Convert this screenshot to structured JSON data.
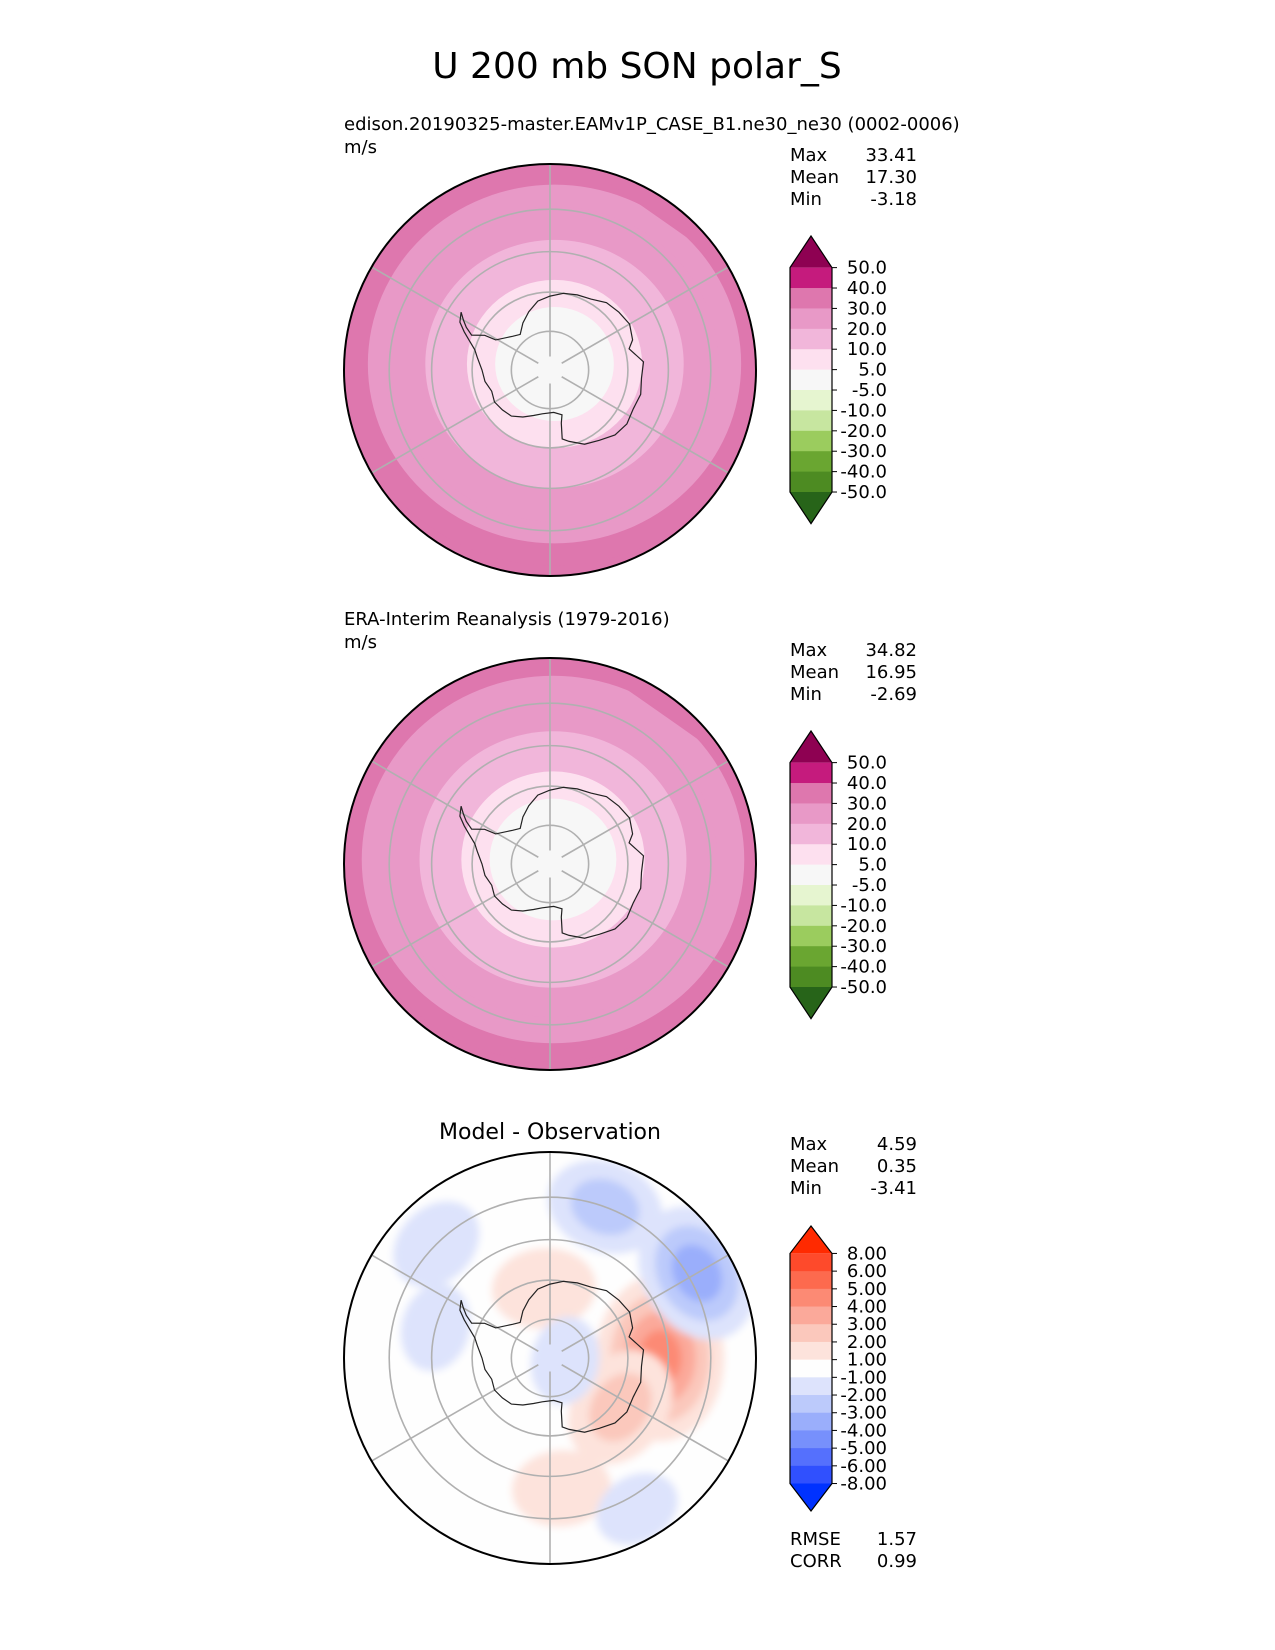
{
  "figure_title": "U 200 mb SON polar_S",
  "chart_data": [
    {
      "type": "heatmap",
      "projection": "south-polar-stereographic",
      "title": "edison.20190325-master.EAMv1P_CASE_B1.ne30_ne30 (0002-0006)",
      "units": "m/s",
      "stats": [
        {
          "label": "Max",
          "value": "33.41"
        },
        {
          "label": "Mean",
          "value": "17.30"
        },
        {
          "label": "Min",
          "value": "-3.18"
        }
      ],
      "colorbar": {
        "ticks": [
          "50.0",
          "40.0",
          "30.0",
          "20.0",
          "10.0",
          "5.0",
          "-5.0",
          "-10.0",
          "-20.0",
          "-30.0",
          "-40.0",
          "-50.0"
        ],
        "colors": [
          "#8e0152",
          "#c51b7d",
          "#de77ae",
          "#e899c7",
          "#f1b6da",
          "#fde0ef",
          "#f7f7f7",
          "#e6f5d0",
          "#c7e6a0",
          "#9bcc5e",
          "#6aa631",
          "#4d8b22",
          "#276419"
        ]
      },
      "zones": [
        {
          "from_lat": -90,
          "to_lat": -75,
          "value": 2
        },
        {
          "from_lat": -75,
          "to_lat": -68,
          "value": 7
        },
        {
          "from_lat": -68,
          "to_lat": -58,
          "value": 15
        },
        {
          "from_lat": -58,
          "to_lat": -50,
          "value": 20
        },
        {
          "from_lat": -50,
          "to_lat": -45,
          "value": 27
        },
        {
          "from_lat": -45,
          "to_lat": -40,
          "value": 33
        }
      ],
      "band_offset_degrees": [
        1.5,
        -2
      ]
    },
    {
      "type": "heatmap",
      "projection": "south-polar-stereographic",
      "title": "ERA-Interim Reanalysis (1979-2016)",
      "units": "m/s",
      "stats": [
        {
          "label": "Max",
          "value": "34.82"
        },
        {
          "label": "Mean",
          "value": "16.95"
        },
        {
          "label": "Min",
          "value": "-2.69"
        }
      ],
      "colorbar": {
        "ticks": [
          "50.0",
          "40.0",
          "30.0",
          "20.0",
          "10.0",
          "5.0",
          "-5.0",
          "-10.0",
          "-20.0",
          "-30.0",
          "-40.0",
          "-50.0"
        ],
        "colors": [
          "#8e0152",
          "#c51b7d",
          "#de77ae",
          "#e899c7",
          "#f1b6da",
          "#fde0ef",
          "#f7f7f7",
          "#e6f5d0",
          "#c7e6a0",
          "#9bcc5e",
          "#6aa631",
          "#4d8b22",
          "#276419"
        ]
      },
      "zones": [
        {
          "from_lat": -90,
          "to_lat": -74,
          "value": 2
        },
        {
          "from_lat": -74,
          "to_lat": -67,
          "value": 7
        },
        {
          "from_lat": -67,
          "to_lat": -57,
          "value": 15
        },
        {
          "from_lat": -57,
          "to_lat": -50,
          "value": 22
        },
        {
          "from_lat": -50,
          "to_lat": -44,
          "value": 28
        },
        {
          "from_lat": -44,
          "to_lat": -40,
          "value": 34
        }
      ],
      "band_offset_degrees": [
        1,
        -1.5
      ]
    },
    {
      "type": "heatmap",
      "projection": "south-polar-stereographic",
      "title": "Model - Observation",
      "units": "",
      "stats": [
        {
          "label": "Max",
          "value": "4.59"
        },
        {
          "label": "Mean",
          "value": "0.35"
        },
        {
          "label": "Min",
          "value": "-3.41"
        }
      ],
      "bottom_stats": [
        {
          "label": "RMSE",
          "value": "1.57"
        },
        {
          "label": "CORR",
          "value": "0.99"
        }
      ],
      "colorbar": {
        "ticks": [
          "8.00",
          "6.00",
          "5.00",
          "4.00",
          "3.00",
          "2.00",
          "1.00",
          "-1.00",
          "-2.00",
          "-3.00",
          "-4.00",
          "-5.00",
          "-6.00",
          "-8.00"
        ],
        "colors": [
          "#ff2a00",
          "#fe4a2b",
          "#fd6a4e",
          "#fc8a74",
          "#fba99a",
          "#fbc8bc",
          "#fde3dc",
          "#fefefe",
          "#dde3fc",
          "#bccafb",
          "#9aaefb",
          "#7790fc",
          "#5570fd",
          "#3050fe",
          "#0032ff"
        ]
      },
      "anomalies": [
        {
          "lat": -62,
          "lon": 90,
          "value": 4.2
        },
        {
          "lat": -68,
          "lon": 125,
          "value": 2.5
        },
        {
          "lat": -57,
          "lon": 175,
          "value": 1.6
        },
        {
          "lat": -72,
          "lon": -5,
          "value": 1.8
        },
        {
          "lat": -48,
          "lon": 60,
          "value": -3.2
        },
        {
          "lat": -50,
          "lon": 20,
          "value": -2.3
        },
        {
          "lat": -50,
          "lon": -45,
          "value": -1.5
        },
        {
          "lat": -60,
          "lon": -75,
          "value": -1.2
        },
        {
          "lat": -86,
          "lon": 100,
          "value": -1.2
        },
        {
          "lat": -47,
          "lon": 150,
          "value": -1.1
        }
      ]
    }
  ]
}
